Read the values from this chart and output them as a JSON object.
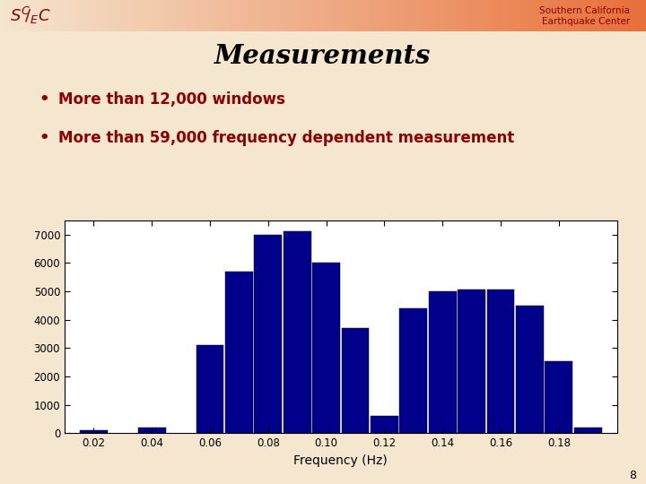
{
  "title": "Measurements",
  "bullet1": "More than 12,000 windows",
  "bullet2": "More than 59,000 frequency dependent measurement",
  "x_positions": [
    0.02,
    0.04,
    0.06,
    0.07,
    0.08,
    0.09,
    0.1,
    0.11,
    0.12,
    0.13,
    0.14,
    0.15,
    0.16,
    0.17,
    0.18
  ],
  "heights": [
    100,
    200,
    3100,
    5700,
    7000,
    7100,
    6000,
    3700,
    600,
    4400,
    5000,
    5050,
    5050,
    4500,
    2550
  ],
  "last_bar_x": [
    0.19
  ],
  "last_bar_h": [
    200
  ],
  "bar_color": "#00008B",
  "xlabel": "Frequency (Hz)",
  "xlim": [
    0.01,
    0.2
  ],
  "ylim": [
    0,
    7500
  ],
  "yticks": [
    0,
    1000,
    2000,
    3000,
    4000,
    5000,
    6000,
    7000
  ],
  "xticks": [
    0.02,
    0.04,
    0.06,
    0.08,
    0.1,
    0.12,
    0.14,
    0.16,
    0.18
  ],
  "bg_color": "#FFFFFF",
  "slide_bg": "#F5E6D0",
  "bullet_color": "#8B0000",
  "scec_text": "Southern California\nEarthquake Center",
  "page_number": "8",
  "bar_width": 0.0095,
  "header_colors": [
    "#F5E6D0",
    "#E8703A"
  ],
  "logo_text_color": "#8B0000"
}
